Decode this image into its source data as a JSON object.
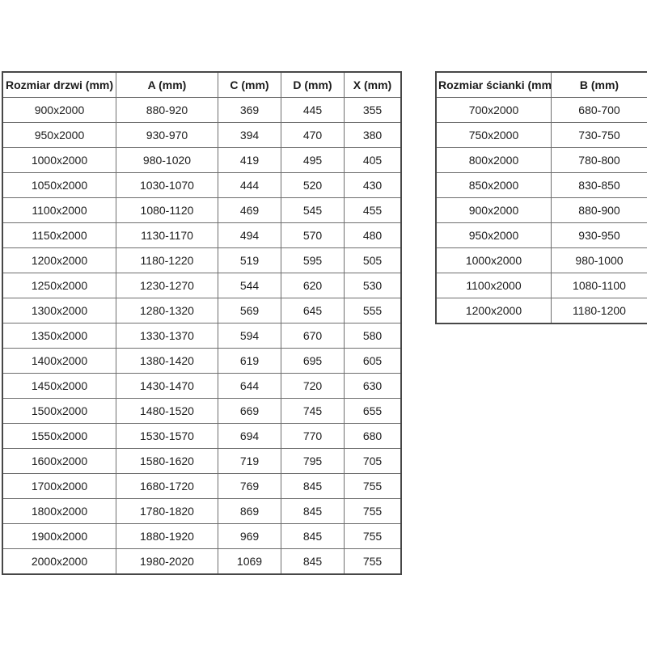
{
  "page": {
    "background": "#ffffff",
    "text_color": "#1c1c1c",
    "border_color": "#6e6e6e"
  },
  "door_table": {
    "headers": [
      "Rozmiar drzwi (mm)",
      "A (mm)",
      "C (mm)",
      "D (mm)",
      "X (mm)"
    ],
    "rows": [
      [
        "900x2000",
        "880-920",
        "369",
        "445",
        "355"
      ],
      [
        "950x2000",
        "930-970",
        "394",
        "470",
        "380"
      ],
      [
        "1000x2000",
        "980-1020",
        "419",
        "495",
        "405"
      ],
      [
        "1050x2000",
        "1030-1070",
        "444",
        "520",
        "430"
      ],
      [
        "1100x2000",
        "1080-1120",
        "469",
        "545",
        "455"
      ],
      [
        "1150x2000",
        "1130-1170",
        "494",
        "570",
        "480"
      ],
      [
        "1200x2000",
        "1180-1220",
        "519",
        "595",
        "505"
      ],
      [
        "1250x2000",
        "1230-1270",
        "544",
        "620",
        "530"
      ],
      [
        "1300x2000",
        "1280-1320",
        "569",
        "645",
        "555"
      ],
      [
        "1350x2000",
        "1330-1370",
        "594",
        "670",
        "580"
      ],
      [
        "1400x2000",
        "1380-1420",
        "619",
        "695",
        "605"
      ],
      [
        "1450x2000",
        "1430-1470",
        "644",
        "720",
        "630"
      ],
      [
        "1500x2000",
        "1480-1520",
        "669",
        "745",
        "655"
      ],
      [
        "1550x2000",
        "1530-1570",
        "694",
        "770",
        "680"
      ],
      [
        "1600x2000",
        "1580-1620",
        "719",
        "795",
        "705"
      ],
      [
        "1700x2000",
        "1680-1720",
        "769",
        "845",
        "755"
      ],
      [
        "1800x2000",
        "1780-1820",
        "869",
        "845",
        "755"
      ],
      [
        "1900x2000",
        "1880-1920",
        "969",
        "845",
        "755"
      ],
      [
        "2000x2000",
        "1980-2020",
        "1069",
        "845",
        "755"
      ]
    ]
  },
  "wall_table": {
    "headers": [
      "Rozmiar ścianki (mm)",
      "B (mm)"
    ],
    "rows": [
      [
        "700x2000",
        "680-700"
      ],
      [
        "750x2000",
        "730-750"
      ],
      [
        "800x2000",
        "780-800"
      ],
      [
        "850x2000",
        "830-850"
      ],
      [
        "900x2000",
        "880-900"
      ],
      [
        "950x2000",
        "930-950"
      ],
      [
        "1000x2000",
        "980-1000"
      ],
      [
        "1100x2000",
        "1080-1100"
      ],
      [
        "1200x2000",
        "1180-1200"
      ]
    ]
  }
}
